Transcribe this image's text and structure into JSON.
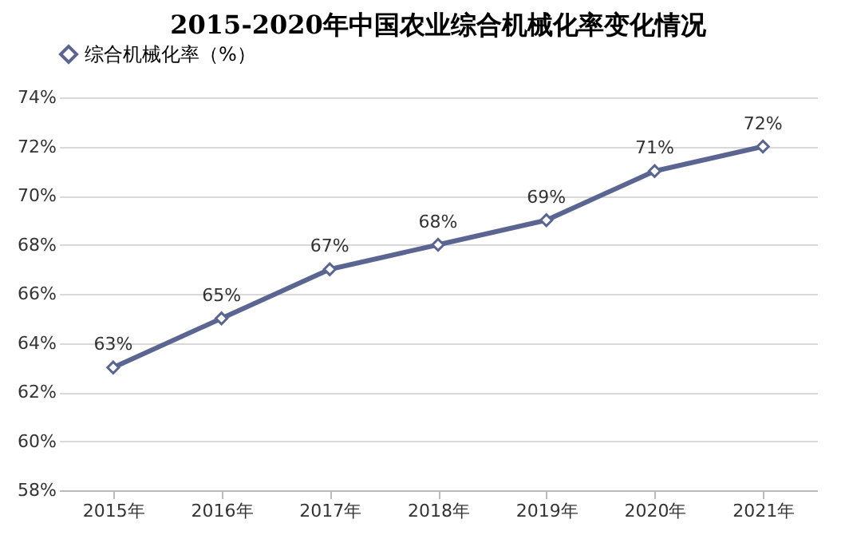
{
  "chart_data": {
    "type": "line",
    "title": "2015-2020年中国农业综合机械化率变化情况",
    "categories": [
      "2015年",
      "2016年",
      "2017年",
      "2018年",
      "2019年",
      "2020年",
      "2021年"
    ],
    "series": [
      {
        "name": "综合机械化率（%）",
        "color": "#5b6591",
        "values": [
          63,
          65,
          67,
          68,
          69,
          71,
          72
        ],
        "value_labels": [
          "63%",
          "65%",
          "67%",
          "68%",
          "69%",
          "71%",
          "72%"
        ]
      }
    ],
    "ylim": [
      58,
      74
    ],
    "yticks": [
      {
        "value": 58,
        "label": "58%"
      },
      {
        "value": 60,
        "label": "60%"
      },
      {
        "value": 62,
        "label": "62%"
      },
      {
        "value": 64,
        "label": "64%"
      },
      {
        "value": 66,
        "label": "66%"
      },
      {
        "value": 68,
        "label": "68%"
      },
      {
        "value": 70,
        "label": "70%"
      },
      {
        "value": 72,
        "label": "72%"
      },
      {
        "value": 74,
        "label": "74%"
      }
    ],
    "grid": "y",
    "legend": "top",
    "marker": "diamond",
    "line_style": "solid"
  }
}
